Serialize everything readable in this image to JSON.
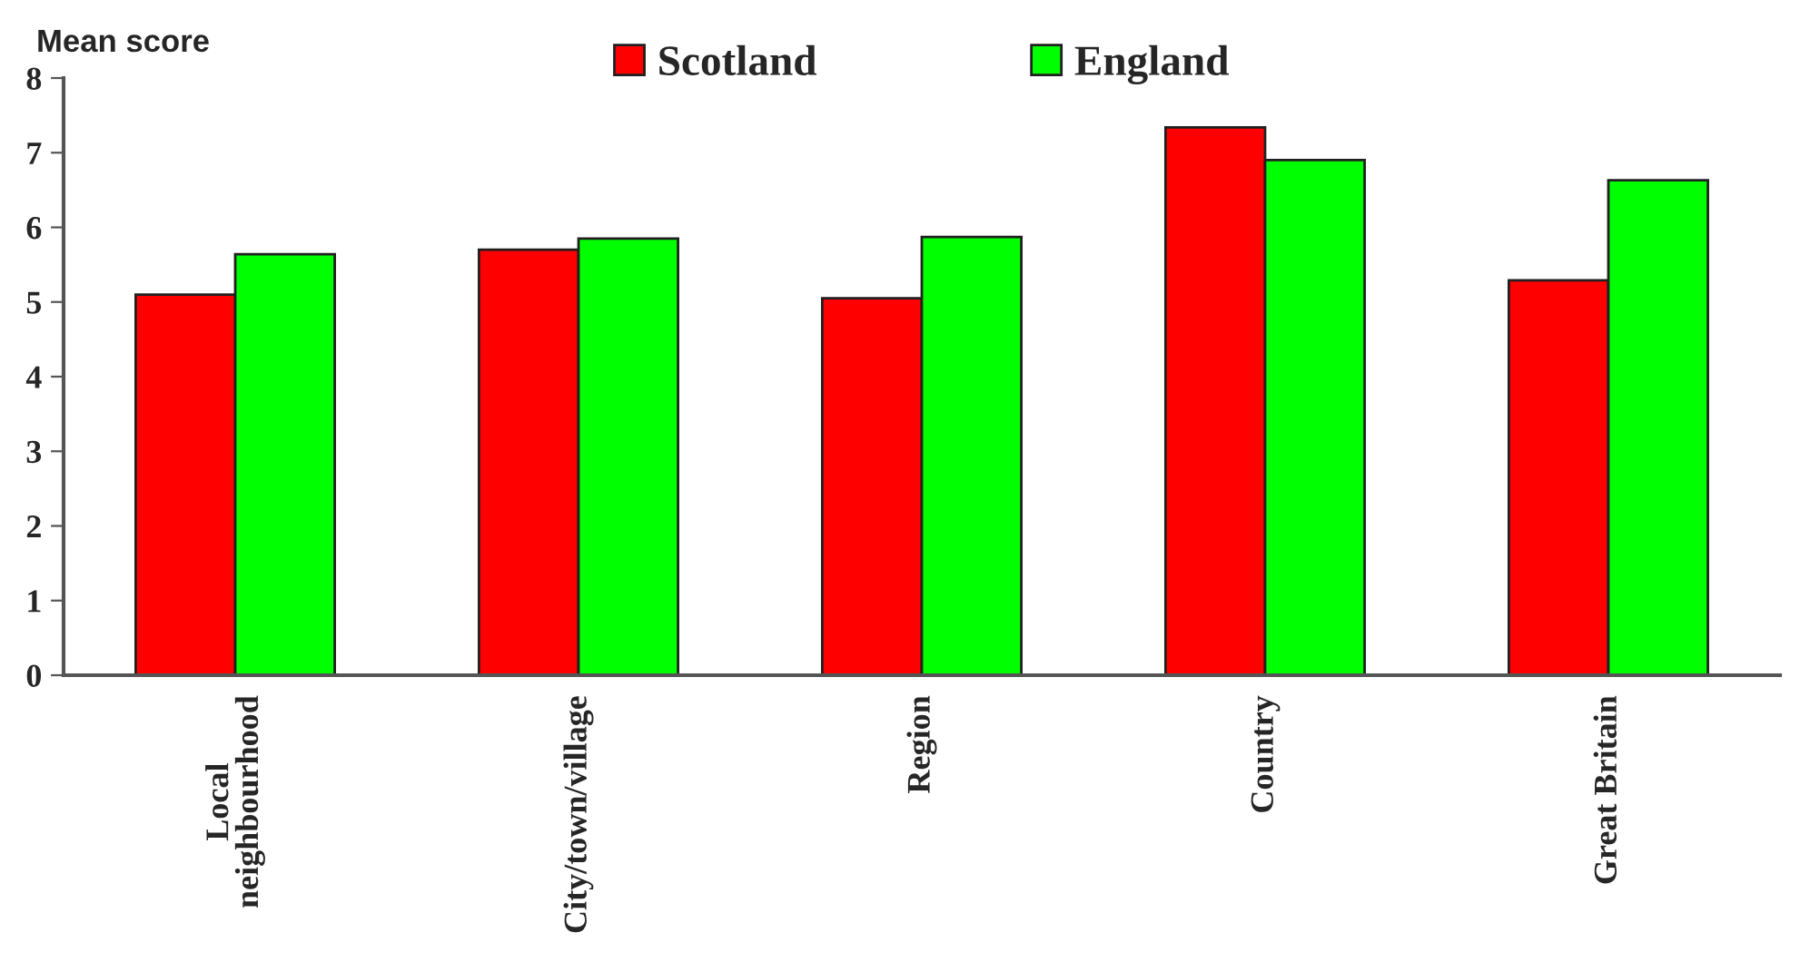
{
  "chart_data": {
    "type": "bar",
    "ylabel": "Mean score",
    "categories": [
      "Local\nneighbourhood",
      "City/town/village",
      "Region",
      "Country",
      "Great Britain"
    ],
    "series": [
      {
        "name": "Scotland",
        "color": "#ff0000",
        "values": [
          5.1,
          5.7,
          5.05,
          7.34,
          5.29
        ]
      },
      {
        "name": "England",
        "color": "#00ff00",
        "values": [
          5.64,
          5.85,
          5.87,
          6.9,
          6.63
        ]
      }
    ],
    "ylim": [
      0,
      8
    ],
    "yticks": [
      0,
      1,
      2,
      3,
      4,
      5,
      6,
      7,
      8
    ],
    "grid": false,
    "legend": "top"
  }
}
